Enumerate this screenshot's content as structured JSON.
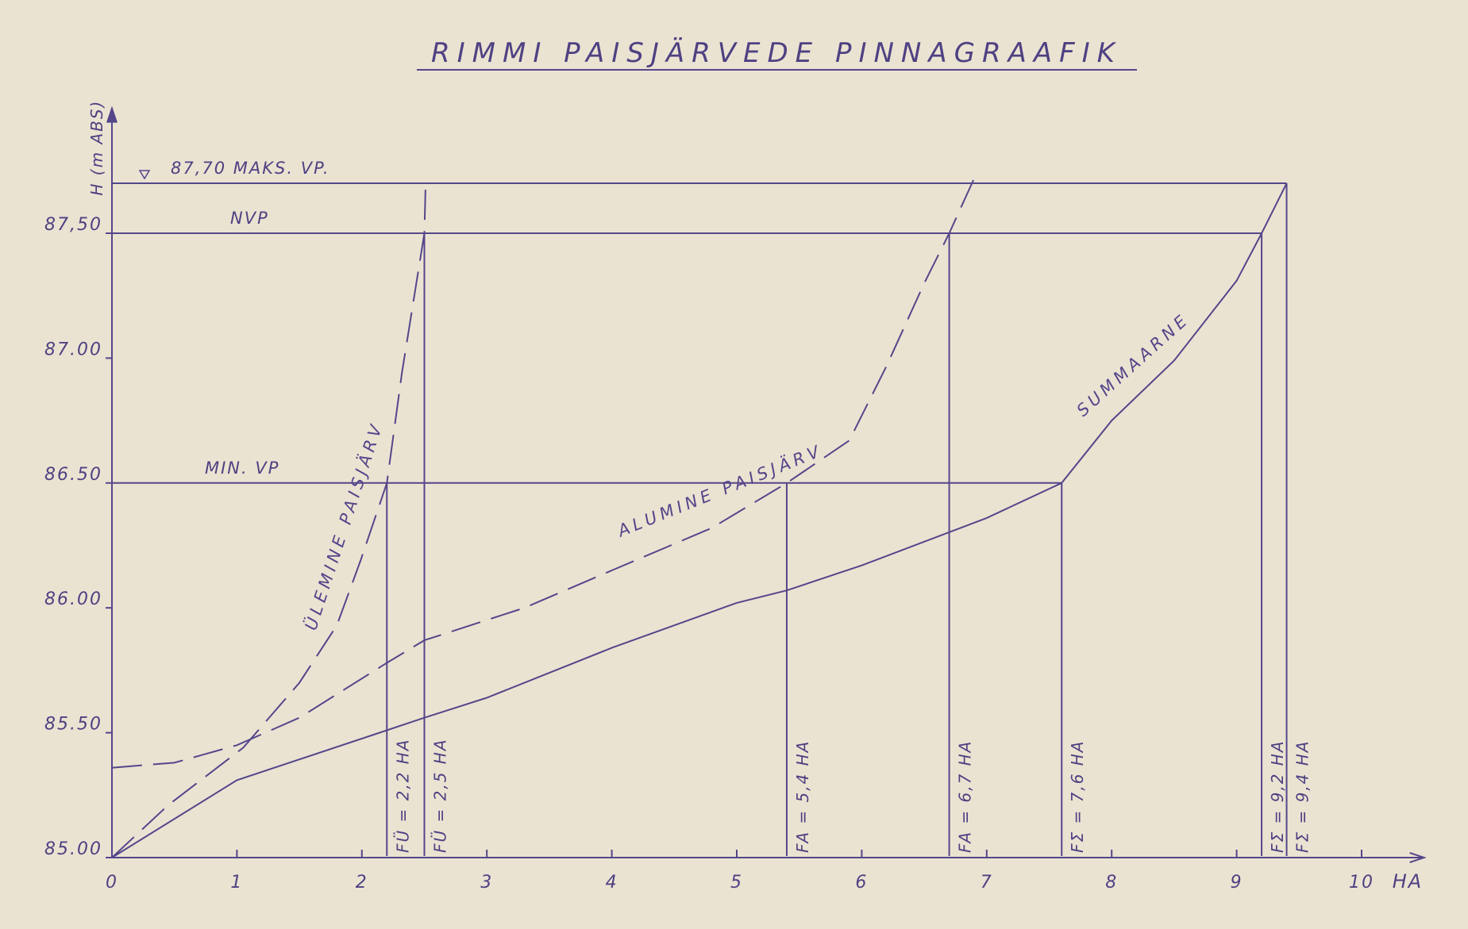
{
  "chart_data": {
    "type": "line",
    "title": "RIMMI PAISJÄRVEDE PINNAGRAAFIK",
    "x_label": "HA",
    "y_label": "H (m ABS)",
    "xlim": [
      0,
      10.5
    ],
    "ylim": [
      85,
      88
    ],
    "xticks": [
      0,
      1,
      2,
      3,
      4,
      5,
      6,
      7,
      8,
      9,
      10
    ],
    "yticks": [
      {
        "value": 85,
        "label": "85.00"
      },
      {
        "value": 85.5,
        "label": "85.50"
      },
      {
        "value": 86,
        "label": "86.00"
      },
      {
        "value": 86.5,
        "label": "86.50"
      },
      {
        "value": 87,
        "label": "87.00"
      },
      {
        "value": 87.5,
        "label": "87,50"
      }
    ],
    "series": [
      {
        "name": "ÜLEMINE PAISJÄRV",
        "color": "#54468a",
        "style": "dashed",
        "x": [
          0,
          0.45,
          1.05,
          1.5,
          1.8,
          1.99,
          2.2,
          2.32,
          2.5,
          2.51
        ],
        "values": [
          85.0,
          85.21,
          85.44,
          85.7,
          85.93,
          86.19,
          86.5,
          86.94,
          87.5,
          87.7
        ]
      },
      {
        "name": "ALUMINE PAISJÄRV",
        "color": "#54468a",
        "style": "dashed",
        "x": [
          0,
          0.5,
          1.0,
          1.5,
          2.2,
          2.5,
          3.3,
          4.0,
          4.8,
          5.4,
          5.9,
          6.2,
          6.5,
          6.7,
          6.9
        ],
        "values": [
          85.36,
          85.38,
          85.45,
          85.56,
          85.78,
          85.87,
          86.0,
          86.15,
          86.32,
          86.5,
          86.67,
          86.97,
          87.3,
          87.5,
          87.72
        ]
      },
      {
        "name": "SUMMAARNE",
        "color": "#54468a",
        "style": "solid",
        "x": [
          0,
          1,
          2.2,
          2.5,
          3,
          4,
          5,
          5.4,
          6,
          7,
          7.6,
          8,
          8.5,
          9,
          9.2,
          9.4
        ],
        "values": [
          85.0,
          85.31,
          85.51,
          85.56,
          85.64,
          85.84,
          86.02,
          86.07,
          86.17,
          86.36,
          86.5,
          86.75,
          86.99,
          87.31,
          87.5,
          87.7
        ]
      }
    ],
    "levels": [
      {
        "label": "87,70 MAKS. VP.",
        "value": 87.7
      },
      {
        "label": "NVP",
        "value": 87.5
      },
      {
        "label": "MIN. VP",
        "value": 86.5
      }
    ],
    "markers": [
      {
        "x": 2.2,
        "y": 86.5,
        "label": "FÜ = 2,2 HA"
      },
      {
        "x": 2.5,
        "y": 87.5,
        "label": "FÜ = 2,5 HA"
      },
      {
        "x": 5.4,
        "y": 86.5,
        "label": "FA = 5,4 HA"
      },
      {
        "x": 6.7,
        "y": 87.5,
        "label": "FA = 6,7 HA"
      },
      {
        "x": 7.6,
        "y": 86.5,
        "label": "FΣ = 7,6 HA"
      },
      {
        "x": 9.2,
        "y": 87.5,
        "label": "FΣ = 9,2 HA"
      },
      {
        "x": 9.4,
        "y": 87.7,
        "label": "FΣ = 9,4 HA"
      }
    ]
  }
}
